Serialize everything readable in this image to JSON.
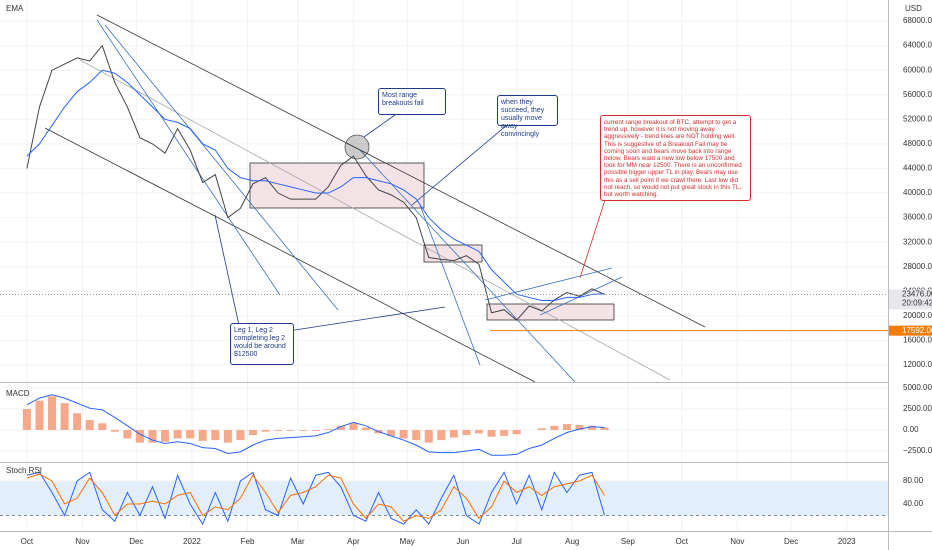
{
  "chart_data": [
    {
      "type": "line",
      "title": "EMA",
      "axis_unit": "USD",
      "x": [
        0,
        7,
        14,
        21,
        28,
        35,
        42,
        49,
        56,
        63,
        70,
        77,
        84,
        91,
        98,
        105,
        112,
        119,
        126,
        133,
        140,
        147,
        154,
        161,
        168,
        175,
        182,
        189,
        196,
        203,
        210,
        217,
        224,
        231,
        238,
        245,
        252,
        259,
        266,
        273,
        280,
        287,
        294,
        301,
        308,
        315,
        322
      ],
      "xlim": [
        -15,
        480
      ],
      "xticks": [
        {
          "value": 0,
          "label": "Oct"
        },
        {
          "value": 31,
          "label": "Nov"
        },
        {
          "value": 61,
          "label": "Dec"
        },
        {
          "value": 92,
          "label": "2022"
        },
        {
          "value": 123,
          "label": "Feb"
        },
        {
          "value": 151,
          "label": "Mar"
        },
        {
          "value": 182,
          "label": "Apr"
        },
        {
          "value": 212,
          "label": "May"
        },
        {
          "value": 243,
          "label": "Jun"
        },
        {
          "value": 273,
          "label": "Jul"
        },
        {
          "value": 304,
          "label": "Aug"
        },
        {
          "value": 335,
          "label": "Sep"
        },
        {
          "value": 365,
          "label": "Oct"
        },
        {
          "value": 396,
          "label": "Nov"
        },
        {
          "value": 426,
          "label": "Dec"
        },
        {
          "value": 457,
          "label": "2023"
        }
      ],
      "series": [
        {
          "color": "#444444",
          "values": [
            44000,
            54000,
            60000,
            61000,
            62000,
            61500,
            64000,
            58000,
            54000,
            49000,
            48000,
            46500,
            50500,
            47000,
            41700,
            43000,
            36000,
            37500,
            41500,
            42500,
            40000,
            39000,
            39000,
            39000,
            41000,
            44500,
            46000,
            42800,
            40500,
            39700,
            38500,
            36000,
            29500,
            29200,
            29000,
            29800,
            28400,
            20500,
            21000,
            19300,
            21600,
            20800,
            22600,
            23800,
            23200,
            24400,
            23476
          ]
        },
        {
          "color": "#2962ff",
          "values": [
            46000,
            48000,
            51000,
            54000,
            56500,
            58000,
            60000,
            59500,
            58000,
            56000,
            54000,
            52000,
            51500,
            50500,
            48000,
            47000,
            44000,
            42500,
            42000,
            42000,
            41500,
            41000,
            40500,
            40000,
            40000,
            41000,
            42500,
            42500,
            42000,
            41500,
            40500,
            39000,
            36000,
            34000,
            32500,
            31500,
            30500,
            27500,
            25500,
            23500,
            23000,
            22500,
            22500,
            23000,
            23000,
            23500,
            23600
          ]
        }
      ],
      "ylim": [
        9230,
        71100
      ],
      "yticks": [
        {
          "value": 68000,
          "label": "68000.00"
        },
        {
          "value": 64000,
          "label": "64000.00"
        },
        {
          "value": 60000,
          "label": "60000.00"
        },
        {
          "value": 56000,
          "label": "56000.00"
        },
        {
          "value": 52000,
          "label": "52000.00"
        },
        {
          "value": 48000,
          "label": "48000.00"
        },
        {
          "value": 44000,
          "label": "44000.00"
        },
        {
          "value": 40000,
          "label": "40000.00"
        },
        {
          "value": 36000,
          "label": "36000.00"
        },
        {
          "value": 32000,
          "label": "32000.00"
        },
        {
          "value": 28000,
          "label": "28000.00"
        },
        {
          "value": 24000,
          "label": "24000.00"
        },
        {
          "value": 20000,
          "label": "20000.00"
        },
        {
          "value": 16000,
          "label": "16000.00"
        },
        {
          "value": 12000,
          "label": "12000.00"
        }
      ],
      "grid": true,
      "last_price": {
        "value": 23476,
        "label": "23476.00"
      },
      "countdown": "20:09:42",
      "level": {
        "value": 17592,
        "label": "17592.00",
        "color": "#f57c00"
      },
      "annotations": [
        "Most range breakouts fail",
        "when they succeed, they usually move away convincingly",
        "current range breakout of BTC, attempt to get a trend up, however it is not moving away aggressively - trend lines are NOT holding well. This is suggestive of a Breakout Fail may be coming soon and bears move back into range below.  Bears want a new low below 17500 and look for MM near 12500. There is an unconfirmed possible bigger upper TL in play. Bears may use this as a sell point if we crawl there.  Last low did not reach, so would not put great stock in this TL, but worth watching.",
        "Leg 1, Leg 2 completing leg 2 would be around $12500"
      ]
    },
    {
      "type": "bar",
      "title": "MACD",
      "color": "#f5a88a",
      "values": [
        2500,
        3500,
        4000,
        3200,
        2000,
        1200,
        800,
        -200,
        -1000,
        -1500,
        -1500,
        -1400,
        -1000,
        -1000,
        -1300,
        -1200,
        -1500,
        -1200,
        -600,
        -200,
        -100,
        -100,
        -100,
        -100,
        100,
        500,
        800,
        300,
        -400,
        -700,
        -1000,
        -1200,
        -1500,
        -1200,
        -900,
        -600,
        -400,
        -800,
        -700,
        -500,
        0,
        200,
        500,
        700,
        600,
        500,
        300
      ],
      "series": [
        {
          "color": "#2962ff",
          "values": [
            3000,
            3800,
            4200,
            3800,
            3200,
            2600,
            2400,
            1500,
            500,
            -500,
            -1200,
            -1600,
            -1400,
            -1600,
            -2100,
            -2200,
            -2800,
            -2600,
            -1800,
            -1200,
            -1000,
            -900,
            -800,
            -700,
            -300,
            400,
            900,
            500,
            -200,
            -700,
            -1200,
            -1800,
            -2600,
            -2700,
            -2700,
            -2500,
            -2300,
            -3000,
            -3000,
            -2900,
            -2200,
            -1800,
            -1000,
            -300,
            100,
            400,
            300
          ]
        }
      ],
      "ylim": [
        -3810,
        5600
      ],
      "yticks": [
        {
          "value": 5000,
          "label": "5000.00"
        },
        {
          "value": 2500,
          "label": "2500.00"
        },
        {
          "value": 0,
          "label": "0.00"
        },
        {
          "value": -2500,
          "label": "−2500.00"
        }
      ]
    },
    {
      "type": "line",
      "title": "Stoch RSI",
      "series": [
        {
          "color": "#2962ff",
          "values": [
            90,
            95,
            60,
            20,
            80,
            95,
            30,
            10,
            60,
            20,
            70,
            15,
            90,
            40,
            5,
            60,
            10,
            80,
            95,
            30,
            20,
            85,
            40,
            90,
            95,
            70,
            20,
            10,
            60,
            15,
            5,
            30,
            5,
            50,
            90,
            20,
            5,
            60,
            95,
            40,
            90,
            30,
            95,
            60,
            90,
            95,
            20
          ]
        },
        {
          "color": "#ff6d00",
          "values": [
            85,
            92,
            80,
            40,
            50,
            85,
            60,
            20,
            40,
            40,
            45,
            40,
            55,
            60,
            20,
            35,
            30,
            50,
            90,
            60,
            25,
            55,
            60,
            70,
            90,
            85,
            40,
            15,
            40,
            35,
            10,
            20,
            15,
            30,
            70,
            50,
            15,
            35,
            80,
            60,
            70,
            55,
            70,
            75,
            80,
            90,
            55
          ]
        }
      ],
      "band": [
        20,
        80
      ],
      "band_color": "#e3eefc",
      "ylim": [
        -5.2,
        107.8
      ],
      "yticks": [
        {
          "value": 80,
          "label": "80.00"
        },
        {
          "value": 40,
          "label": "40.00"
        }
      ]
    }
  ]
}
